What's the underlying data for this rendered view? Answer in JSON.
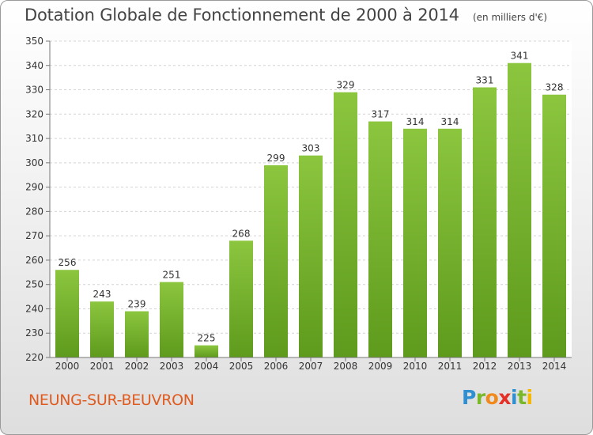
{
  "chart_data": {
    "type": "bar",
    "title": "Dotation Globale de Fonctionnement de 2000 à 2014",
    "subtitle": "(en milliers d'€)",
    "categories": [
      "2000",
      "2001",
      "2002",
      "2003",
      "2004",
      "2005",
      "2006",
      "2007",
      "2008",
      "2009",
      "2010",
      "2011",
      "2012",
      "2013",
      "2014"
    ],
    "values": [
      256,
      243,
      239,
      251,
      225,
      268,
      299,
      303,
      329,
      317,
      314,
      314,
      331,
      341,
      328
    ],
    "ylim": [
      220,
      350
    ],
    "yticks": [
      220,
      230,
      240,
      250,
      260,
      270,
      280,
      290,
      300,
      310,
      320,
      330,
      340,
      350
    ],
    "grid": true,
    "xlabel": "",
    "ylabel": "",
    "bar_color": "#8cc63f",
    "bar_color_dark": "#5e9a1c"
  },
  "footer": {
    "commune": "NEUNG-SUR-BEUVRON",
    "brand_letters": [
      {
        "char": "P",
        "color": "#2f8fd0"
      },
      {
        "char": "r",
        "color": "#7ab829"
      },
      {
        "char": "o",
        "color": "#f08a1c"
      },
      {
        "char": "x",
        "color": "#e63027"
      },
      {
        "char": "i",
        "color": "#2f8fd0"
      },
      {
        "char": "t",
        "color": "#7ab829"
      },
      {
        "char": "i",
        "color": "#f5b800"
      }
    ]
  },
  "colors": {
    "commune_text": "#e05a1e",
    "title_text": "#444444"
  }
}
